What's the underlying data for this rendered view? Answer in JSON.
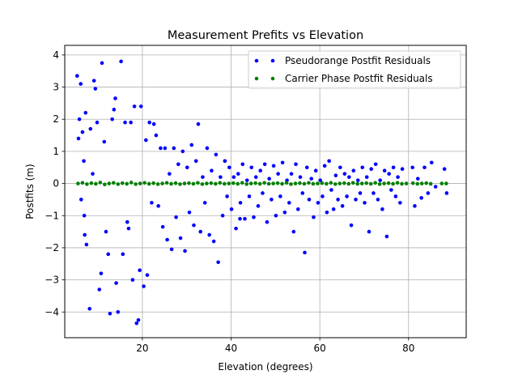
{
  "chart_data": {
    "type": "scatter",
    "title": "Measurement Prefits vs Elevation",
    "xlabel": "Elevation (degrees)",
    "ylabel": "Postfits (m)",
    "xlim": [
      2.5,
      93
    ],
    "ylim": [
      -4.8,
      4.3
    ],
    "xticks": [
      20,
      40,
      60,
      80
    ],
    "yticks": [
      -4,
      -3,
      -2,
      -1,
      0,
      1,
      2,
      3,
      4
    ],
    "grid": true,
    "legend": "top-right",
    "series": [
      {
        "name": "Pseudorange Postfit Residuals",
        "color": "#0000ff",
        "points": [
          [
            5.3,
            3.35
          ],
          [
            6.1,
            3.1
          ],
          [
            5.8,
            2.0
          ],
          [
            6.5,
            1.6
          ],
          [
            7.2,
            2.2
          ],
          [
            5.6,
            1.4
          ],
          [
            6.8,
            0.7
          ],
          [
            6.2,
            -0.5
          ],
          [
            6.9,
            -1.0
          ],
          [
            7.4,
            -1.9
          ],
          [
            7.0,
            -1.6
          ],
          [
            8.1,
            -3.9
          ],
          [
            8.3,
            1.7
          ],
          [
            8.8,
            0.3
          ],
          [
            9.1,
            3.2
          ],
          [
            9.4,
            2.95
          ],
          [
            9.8,
            1.9
          ],
          [
            10.3,
            -3.3
          ],
          [
            10.7,
            -2.8
          ],
          [
            10.9,
            3.75
          ],
          [
            11.4,
            1.3
          ],
          [
            11.8,
            -1.5
          ],
          [
            12.3,
            -2.2
          ],
          [
            12.7,
            -4.05
          ],
          [
            13.2,
            2.0
          ],
          [
            13.6,
            2.3
          ],
          [
            13.9,
            2.65
          ],
          [
            14.1,
            -3.1
          ],
          [
            14.5,
            -4.0
          ],
          [
            15.2,
            3.8
          ],
          [
            15.6,
            -2.2
          ],
          [
            16.1,
            1.9
          ],
          [
            16.6,
            -1.2
          ],
          [
            16.9,
            -1.4
          ],
          [
            17.4,
            1.9
          ],
          [
            17.8,
            -3.0
          ],
          [
            18.2,
            2.4
          ],
          [
            18.7,
            -4.35
          ],
          [
            19.1,
            -4.25
          ],
          [
            19.4,
            -2.7
          ],
          [
            19.7,
            2.4
          ],
          [
            20.3,
            -3.2
          ],
          [
            20.8,
            1.35
          ],
          [
            21.1,
            -2.85
          ],
          [
            21.6,
            1.9
          ],
          [
            22.1,
            -0.6
          ],
          [
            22.6,
            1.85
          ],
          [
            23.1,
            1.5
          ],
          [
            23.6,
            -0.7
          ],
          [
            24.1,
            1.1
          ],
          [
            24.6,
            -1.35
          ],
          [
            25.1,
            1.1
          ],
          [
            25.6,
            -1.75
          ],
          [
            26.1,
            0.3
          ],
          [
            26.6,
            -2.05
          ],
          [
            27.1,
            1.1
          ],
          [
            27.6,
            -1.05
          ],
          [
            28.1,
            0.6
          ],
          [
            28.6,
            -1.7
          ],
          [
            29.1,
            1.0
          ],
          [
            29.6,
            -2.1
          ],
          [
            30.1,
            0.5
          ],
          [
            30.6,
            -0.9
          ],
          [
            31.1,
            1.2
          ],
          [
            31.6,
            -1.3
          ],
          [
            32.1,
            0.7
          ],
          [
            32.6,
            1.85
          ],
          [
            33.1,
            -1.5
          ],
          [
            33.6,
            0.2
          ],
          [
            34.1,
            -0.6
          ],
          [
            34.6,
            1.1
          ],
          [
            35.1,
            -1.6
          ],
          [
            35.6,
            0.4
          ],
          [
            36.1,
            -1.8
          ],
          [
            36.6,
            0.9
          ],
          [
            37.1,
            -2.45
          ],
          [
            37.6,
            0.2
          ],
          [
            38.1,
            -1.0
          ],
          [
            38.6,
            0.7
          ],
          [
            39.1,
            -0.4
          ],
          [
            39.6,
            0.5
          ],
          [
            40.1,
            -0.8
          ],
          [
            40.6,
            0.2
          ],
          [
            41.1,
            -1.4
          ],
          [
            41.6,
            0.3
          ],
          [
            42.1,
            -0.6
          ],
          [
            42.6,
            0.6
          ],
          [
            43.1,
            -1.1
          ],
          [
            43.6,
            0.1
          ],
          [
            44.1,
            -0.4
          ],
          [
            44.6,
            0.5
          ],
          [
            45.1,
            -1.05
          ],
          [
            45.6,
            0.2
          ],
          [
            46.1,
            -0.7
          ],
          [
            46.6,
            0.4
          ],
          [
            47.1,
            -0.3
          ],
          [
            47.6,
            0.6
          ],
          [
            48.1,
            -1.2
          ],
          [
            48.6,
            0.15
          ],
          [
            49.1,
            -0.5
          ],
          [
            49.6,
            0.55
          ],
          [
            50.1,
            -1.0
          ],
          [
            50.6,
            0.3
          ],
          [
            51.1,
            -0.4
          ],
          [
            51.6,
            0.65
          ],
          [
            52.1,
            -0.9
          ],
          [
            52.6,
            0.1
          ],
          [
            53.1,
            -0.6
          ],
          [
            53.6,
            0.3
          ],
          [
            54.1,
            -1.5
          ],
          [
            54.6,
            0.6
          ],
          [
            55.1,
            -0.8
          ],
          [
            55.6,
            0.2
          ],
          [
            56.1,
            -0.3
          ],
          [
            56.6,
            -2.15
          ],
          [
            57.1,
            0.5
          ],
          [
            57.6,
            -0.5
          ],
          [
            58.1,
            0.15
          ],
          [
            58.6,
            -1.05
          ],
          [
            59.1,
            0.4
          ],
          [
            59.6,
            -0.6
          ],
          [
            60.1,
            0.1
          ],
          [
            60.6,
            -0.4
          ],
          [
            61.1,
            0.55
          ],
          [
            61.6,
            -0.9
          ],
          [
            62.1,
            0.7
          ],
          [
            62.6,
            -0.2
          ],
          [
            63.1,
            -0.8
          ],
          [
            63.6,
            0.25
          ],
          [
            64.1,
            -0.5
          ],
          [
            64.6,
            0.5
          ],
          [
            65.1,
            -0.7
          ],
          [
            65.6,
            0.3
          ],
          [
            66.1,
            -0.4
          ],
          [
            66.6,
            0.2
          ],
          [
            67.1,
            -1.3
          ],
          [
            67.6,
            0.4
          ],
          [
            68.1,
            -0.5
          ],
          [
            68.6,
            0.1
          ],
          [
            69.1,
            -0.3
          ],
          [
            69.6,
            0.5
          ],
          [
            70.1,
            -0.6
          ],
          [
            70.6,
            0.2
          ],
          [
            71.1,
            -1.5
          ],
          [
            71.6,
            0.45
          ],
          [
            72.1,
            -0.3
          ],
          [
            72.6,
            0.6
          ],
          [
            73.1,
            -0.5
          ],
          [
            73.6,
            0.1
          ],
          [
            74.1,
            -0.8
          ],
          [
            74.6,
            0.4
          ],
          [
            75.1,
            -1.65
          ],
          [
            75.6,
            0.3
          ],
          [
            76.1,
            -0.2
          ],
          [
            76.6,
            0.5
          ],
          [
            77.1,
            -0.4
          ],
          [
            77.6,
            0.2
          ],
          [
            78.1,
            -0.6
          ],
          [
            78.6,
            0.45
          ],
          [
            80.9,
            0.5
          ],
          [
            81.4,
            -0.7
          ],
          [
            82.1,
            0.15
          ],
          [
            82.9,
            -0.45
          ],
          [
            83.6,
            0.5
          ],
          [
            84.4,
            -0.3
          ],
          [
            85.2,
            0.65
          ],
          [
            86.1,
            -0.1
          ],
          [
            88.1,
            0.45
          ],
          [
            88.6,
            -0.3
          ],
          [
            42.0,
            -1.1
          ]
        ]
      },
      {
        "name": "Carrier Phase Postfit Residuals",
        "color": "#008000",
        "points": [
          [
            5.5,
            0.0
          ],
          [
            6.5,
            0.02
          ],
          [
            7.5,
            -0.02
          ],
          [
            8.5,
            0.01
          ],
          [
            9.5,
            -0.01
          ],
          [
            10.5,
            0.03
          ],
          [
            11.5,
            -0.03
          ],
          [
            12.5,
            0.0
          ],
          [
            13.5,
            0.02
          ],
          [
            14.5,
            -0.02
          ],
          [
            15.5,
            0.01
          ],
          [
            16.5,
            -0.01
          ],
          [
            17.5,
            0.03
          ],
          [
            18.5,
            -0.02
          ],
          [
            19.5,
            0.0
          ],
          [
            20.5,
            0.02
          ],
          [
            21.5,
            -0.01
          ],
          [
            22.5,
            0.01
          ],
          [
            23.5,
            -0.02
          ],
          [
            24.5,
            0.0
          ],
          [
            25.5,
            0.02
          ],
          [
            26.5,
            -0.01
          ],
          [
            27.5,
            0.01
          ],
          [
            28.5,
            -0.02
          ],
          [
            29.5,
            0.0
          ],
          [
            30.5,
            0.01
          ],
          [
            31.5,
            -0.01
          ],
          [
            32.5,
            0.02
          ],
          [
            33.5,
            -0.02
          ],
          [
            34.5,
            0.0
          ],
          [
            35.5,
            0.01
          ],
          [
            36.5,
            -0.01
          ],
          [
            37.5,
            0.02
          ],
          [
            38.5,
            -0.01
          ],
          [
            39.5,
            0.0
          ],
          [
            40.5,
            0.01
          ],
          [
            41.5,
            -0.01
          ],
          [
            42.5,
            0.02
          ],
          [
            43.5,
            -0.02
          ],
          [
            44.5,
            0.0
          ],
          [
            45.5,
            0.01
          ],
          [
            46.5,
            -0.01
          ],
          [
            47.5,
            0.02
          ],
          [
            48.5,
            -0.01
          ],
          [
            49.5,
            0.0
          ],
          [
            50.5,
            0.01
          ],
          [
            51.5,
            -0.01
          ],
          [
            52.5,
            0.02
          ],
          [
            53.5,
            -0.02
          ],
          [
            54.5,
            0.0
          ],
          [
            55.5,
            0.01
          ],
          [
            56.5,
            -0.01
          ],
          [
            57.5,
            0.02
          ],
          [
            58.5,
            -0.01
          ],
          [
            59.5,
            0.0
          ],
          [
            60.5,
            0.01
          ],
          [
            61.5,
            -0.01
          ],
          [
            62.5,
            0.02
          ],
          [
            63.5,
            -0.02
          ],
          [
            64.5,
            0.0
          ],
          [
            65.5,
            0.01
          ],
          [
            66.5,
            -0.01
          ],
          [
            67.5,
            0.02
          ],
          [
            68.5,
            -0.01
          ],
          [
            69.5,
            0.0
          ],
          [
            70.5,
            0.01
          ],
          [
            71.5,
            -0.01
          ],
          [
            72.5,
            0.02
          ],
          [
            73.5,
            -0.02
          ],
          [
            74.5,
            0.0
          ],
          [
            75.5,
            0.01
          ],
          [
            76.5,
            -0.01
          ],
          [
            77.5,
            0.02
          ],
          [
            78.5,
            -0.01
          ],
          [
            79.5,
            0.0
          ],
          [
            81.0,
            0.01
          ],
          [
            82.0,
            -0.01
          ],
          [
            83.0,
            0.0
          ],
          [
            84.0,
            0.01
          ],
          [
            85.0,
            -0.01
          ],
          [
            87.5,
            0.0
          ],
          [
            88.5,
            0.0
          ]
        ]
      }
    ]
  }
}
